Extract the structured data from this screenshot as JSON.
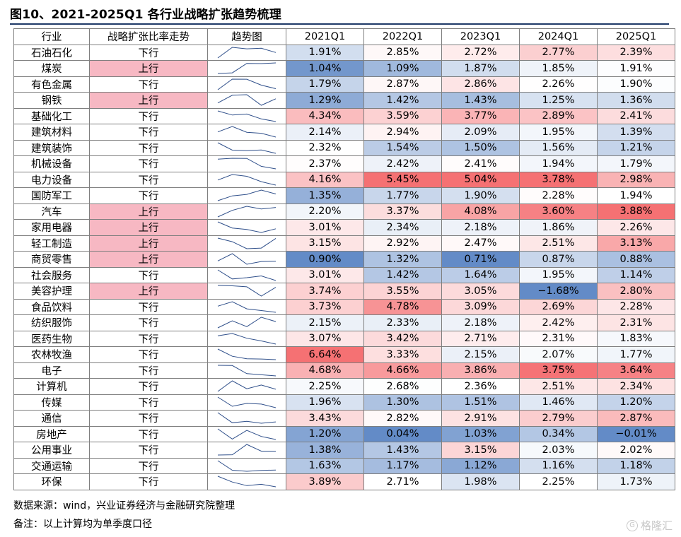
{
  "title": "图10、2021-2025Q1 各行业战略扩张趋势梳理",
  "headers": {
    "industry": "行业",
    "trend_dir": "战略扩张比率走势",
    "sparkline": "趋势图",
    "years": [
      "2021Q1",
      "2022Q1",
      "2023Q1",
      "2024Q1",
      "2025Q1"
    ]
  },
  "rows": [
    {
      "industry": "石油石化",
      "trend": "下行",
      "values": [
        "1.91%",
        "2.85%",
        "2.72%",
        "2.77%",
        "2.39%"
      ]
    },
    {
      "industry": "煤炭",
      "trend": "上行",
      "values": [
        "1.04%",
        "1.09%",
        "1.87%",
        "1.85%",
        "1.91%"
      ]
    },
    {
      "industry": "有色金属",
      "trend": "下行",
      "values": [
        "1.79%",
        "2.87%",
        "2.86%",
        "2.26%",
        "1.90%"
      ]
    },
    {
      "industry": "钢铁",
      "trend": "上行",
      "values": [
        "1.29%",
        "1.42%",
        "1.43%",
        "1.25%",
        "1.36%"
      ]
    },
    {
      "industry": "基础化工",
      "trend": "下行",
      "values": [
        "4.34%",
        "3.59%",
        "3.77%",
        "2.89%",
        "2.41%"
      ]
    },
    {
      "industry": "建筑材料",
      "trend": "下行",
      "values": [
        "2.14%",
        "2.94%",
        "2.09%",
        "1.95%",
        "1.39%"
      ]
    },
    {
      "industry": "建筑装饰",
      "trend": "下行",
      "values": [
        "2.32%",
        "1.54%",
        "1.50%",
        "1.56%",
        "1.21%"
      ]
    },
    {
      "industry": "机械设备",
      "trend": "下行",
      "values": [
        "2.37%",
        "2.42%",
        "2.41%",
        "1.94%",
        "1.79%"
      ]
    },
    {
      "industry": "电力设备",
      "trend": "下行",
      "values": [
        "4.16%",
        "5.45%",
        "5.04%",
        "3.78%",
        "2.98%"
      ]
    },
    {
      "industry": "国防军工",
      "trend": "下行",
      "values": [
        "1.35%",
        "1.77%",
        "1.90%",
        "2.28%",
        "1.94%"
      ]
    },
    {
      "industry": "汽车",
      "trend": "上行",
      "values": [
        "2.20%",
        "3.37%",
        "4.08%",
        "3.60%",
        "3.88%"
      ]
    },
    {
      "industry": "家用电器",
      "trend": "上行",
      "values": [
        "3.01%",
        "2.34%",
        "2.18%",
        "1.86%",
        "2.26%"
      ]
    },
    {
      "industry": "轻工制造",
      "trend": "上行",
      "values": [
        "3.15%",
        "2.92%",
        "2.47%",
        "2.51%",
        "3.13%"
      ]
    },
    {
      "industry": "商贸零售",
      "trend": "上行",
      "values": [
        "0.90%",
        "1.32%",
        "0.71%",
        "0.87%",
        "0.88%"
      ]
    },
    {
      "industry": "社会服务",
      "trend": "下行",
      "values": [
        "3.01%",
        "1.42%",
        "1.64%",
        "1.95%",
        "1.14%"
      ]
    },
    {
      "industry": "美容护理",
      "trend": "上行",
      "values": [
        "3.74%",
        "3.55%",
        "3.05%",
        "−1.68%",
        "2.80%"
      ]
    },
    {
      "industry": "食品饮料",
      "trend": "下行",
      "values": [
        "3.73%",
        "4.78%",
        "3.09%",
        "2.69%",
        "2.28%"
      ]
    },
    {
      "industry": "纺织服饰",
      "trend": "下行",
      "values": [
        "2.15%",
        "2.33%",
        "2.18%",
        "2.42%",
        "2.31%"
      ]
    },
    {
      "industry": "医药生物",
      "trend": "下行",
      "values": [
        "3.07%",
        "3.42%",
        "2.71%",
        "2.31%",
        "1.83%"
      ]
    },
    {
      "industry": "农林牧渔",
      "trend": "下行",
      "values": [
        "6.64%",
        "3.33%",
        "2.15%",
        "2.07%",
        "1.77%"
      ]
    },
    {
      "industry": "电子",
      "trend": "下行",
      "values": [
        "4.68%",
        "4.66%",
        "3.86%",
        "3.75%",
        "3.64%"
      ]
    },
    {
      "industry": "计算机",
      "trend": "下行",
      "values": [
        "2.25%",
        "2.68%",
        "2.36%",
        "2.51%",
        "2.34%"
      ]
    },
    {
      "industry": "传媒",
      "trend": "下行",
      "values": [
        "1.96%",
        "1.30%",
        "1.51%",
        "1.46%",
        "1.20%"
      ]
    },
    {
      "industry": "通信",
      "trend": "下行",
      "values": [
        "3.43%",
        "2.82%",
        "2.91%",
        "2.79%",
        "2.87%"
      ]
    },
    {
      "industry": "房地产",
      "trend": "下行",
      "values": [
        "1.20%",
        "0.04%",
        "1.03%",
        "0.34%",
        "−0.01%"
      ]
    },
    {
      "industry": "公用事业",
      "trend": "下行",
      "values": [
        "1.38%",
        "1.43%",
        "3.15%",
        "2.03%",
        "2.02%"
      ]
    },
    {
      "industry": "交通运输",
      "trend": "下行",
      "values": [
        "1.63%",
        "1.17%",
        "1.12%",
        "1.16%",
        "1.18%"
      ]
    },
    {
      "industry": "环保",
      "trend": "下行",
      "values": [
        "3.89%",
        "2.71%",
        "1.98%",
        "2.25%",
        "1.73%"
      ]
    }
  ],
  "source": "数据来源：wind，兴业证券经济与金融研究院整理",
  "note": "备注：以上计算均为单季度口径",
  "watermark": "格隆汇",
  "colors": {
    "up_fill": "#f7b8c3",
    "scale_low": "#5b85c4",
    "scale_mid": "#ffffff",
    "scale_high": "#f4696c",
    "sparkline": "#2f4f8a",
    "grid": "#7f7f7f"
  }
}
